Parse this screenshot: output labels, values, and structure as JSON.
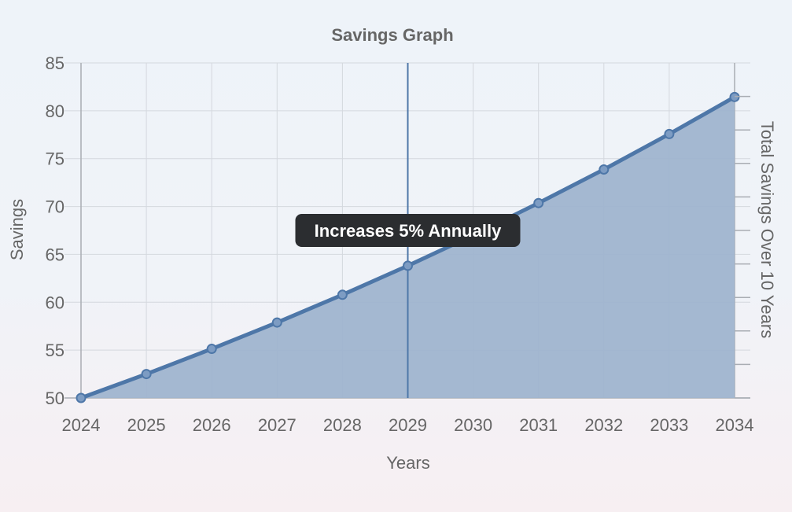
{
  "chart_data": {
    "type": "area",
    "title": "Savings Graph",
    "xlabel": "Years",
    "ylabel": "Savings",
    "y2label": "Total Savings Over 10 Years",
    "x": [
      2024,
      2025,
      2026,
      2027,
      2028,
      2029,
      2030,
      2031,
      2032,
      2033,
      2034
    ],
    "series": [
      {
        "values": [
          50,
          52.5,
          55.13,
          57.88,
          60.78,
          63.81,
          67.0,
          70.36,
          73.87,
          77.57,
          81.44
        ]
      }
    ],
    "ylim": [
      50,
      85
    ],
    "yticks": [
      50,
      55,
      60,
      65,
      70,
      75,
      80,
      85
    ],
    "y2_tick_count": 10,
    "grid": true,
    "annotation": {
      "x": 2029,
      "text": "Increases 5% Annually"
    },
    "colors": {
      "line": "#4e77a8",
      "fill": "#9fb4cf",
      "grid": "#d4d8de",
      "tooltip_bg": "#2b2d30"
    }
  }
}
